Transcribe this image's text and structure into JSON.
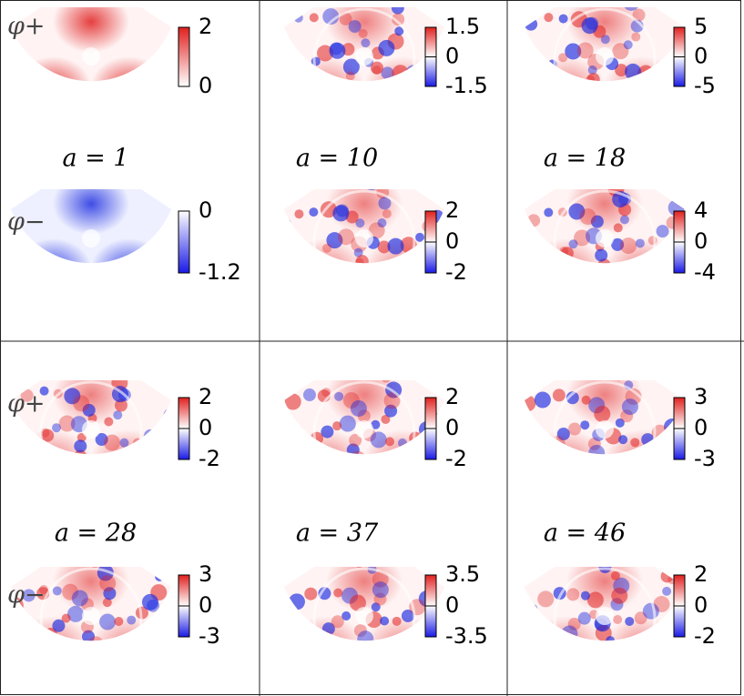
{
  "blocks": [
    {
      "phi_plus": "φ+",
      "phi_minus": "φ−",
      "cells": [
        {
          "a": "a = 1",
          "plus": {
            "labels": [
              "2",
              "0"
            ],
            "colors": [
              "#e0201e",
              "#ffffff"
            ]
          },
          "minus": {
            "labels": [
              "0",
              "-1.2"
            ],
            "colors": [
              "#ffffff",
              "#1a1ae6"
            ]
          }
        },
        {
          "a": "a = 10",
          "plus": {
            "labels": [
              "1.5",
              "0",
              "-1.5"
            ],
            "colors": [
              "#e0201e",
              "#ffffff",
              "#1a1ae6"
            ]
          },
          "minus": {
            "labels": [
              "2",
              "0",
              "-2"
            ],
            "colors": [
              "#e0201e",
              "#ffffff",
              "#1a1ae6"
            ]
          }
        },
        {
          "a": "a = 18",
          "plus": {
            "labels": [
              "5",
              "0",
              "-5"
            ],
            "colors": [
              "#e0201e",
              "#ffffff",
              "#1a1ae6"
            ]
          },
          "minus": {
            "labels": [
              "4",
              "0",
              "-4"
            ],
            "colors": [
              "#e0201e",
              "#ffffff",
              "#1a1ae6"
            ]
          }
        }
      ]
    },
    {
      "phi_plus": "φ+",
      "phi_minus": "φ−",
      "cells": [
        {
          "a": "a = 28",
          "plus": {
            "labels": [
              "2",
              "0",
              "-2"
            ],
            "colors": [
              "#e0201e",
              "#ffffff",
              "#1a1ae6"
            ]
          },
          "minus": {
            "labels": [
              "3",
              "0",
              "-3"
            ],
            "colors": [
              "#e0201e",
              "#ffffff",
              "#1a1ae6"
            ]
          }
        },
        {
          "a": "a = 37",
          "plus": {
            "labels": [
              "2",
              "0",
              "-2"
            ],
            "colors": [
              "#e0201e",
              "#ffffff",
              "#1a1ae6"
            ]
          },
          "minus": {
            "labels": [
              "3.5",
              "0",
              "-3.5"
            ],
            "colors": [
              "#e0201e",
              "#ffffff",
              "#1a1ae6"
            ]
          }
        },
        {
          "a": "a = 46",
          "plus": {
            "labels": [
              "3",
              "0",
              "-3"
            ],
            "colors": [
              "#e0201e",
              "#ffffff",
              "#1a1ae6"
            ]
          },
          "minus": {
            "labels": [
              "2",
              "0",
              "-2"
            ],
            "colors": [
              "#e0201e",
              "#ffffff",
              "#1a1ae6"
            ]
          }
        }
      ]
    }
  ]
}
